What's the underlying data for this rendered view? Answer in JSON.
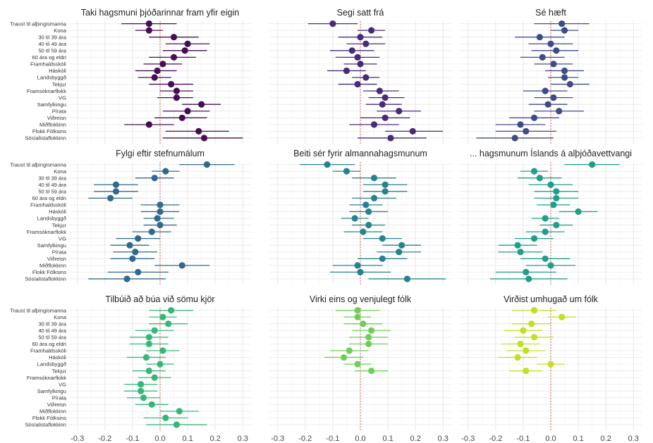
{
  "chart_data": {
    "type": "scatter",
    "subtype": "dot-and-whisker small multiples",
    "xlim": [
      -0.33,
      0.33
    ],
    "xticks": [
      -0.3,
      -0.2,
      -0.1,
      0.0,
      0.1,
      0.2,
      0.3
    ],
    "xtick_labels": [
      "-0.3",
      "-0.2",
      "-0.1",
      "0.0",
      "0.1",
      "0.2",
      "0.3"
    ],
    "reference_line": 0,
    "grid": true,
    "row_labels": [
      "Traust til alþingismanna",
      "Kona",
      "30 til 39 ára",
      "40 til 49 ára",
      "50 til 59 ára",
      "60 ára og eldri",
      "Framhaldsskóli",
      "Háskóli",
      "Landsbyggð",
      "Tekjur",
      "Framsóknarflokk",
      "VG",
      "Samfylkingu",
      "Pírata",
      "Viðreisn",
      "Miðflokkinn",
      "Flokk Fólksins",
      "Sósíalistaflokkinn"
    ],
    "panels": [
      {
        "title": "Taki hagsmuni þjóðarinnar fram yfir eigin",
        "color": "#450d54",
        "values": [
          -0.04,
          -0.04,
          0.05,
          0.1,
          0.09,
          0.05,
          0.01,
          -0.01,
          -0.02,
          0.04,
          0.06,
          0.06,
          0.15,
          0.1,
          0.08,
          -0.04,
          0.14,
          0.16
        ],
        "ci_low": [
          -0.14,
          -0.09,
          -0.04,
          0.02,
          0.01,
          -0.04,
          -0.06,
          -0.09,
          -0.08,
          -0.04,
          0.0,
          -0.01,
          0.08,
          0.01,
          -0.02,
          -0.13,
          0.02,
          0.01
        ],
        "ci_high": [
          0.06,
          0.01,
          0.14,
          0.18,
          0.17,
          0.13,
          0.08,
          0.06,
          0.04,
          0.12,
          0.12,
          0.12,
          0.22,
          0.18,
          0.17,
          0.05,
          0.25,
          0.3
        ]
      },
      {
        "title": "Segi satt frá",
        "color": "#472b7a",
        "values": [
          -0.1,
          0.04,
          0.0,
          0.02,
          -0.03,
          -0.01,
          0.0,
          -0.05,
          0.02,
          -0.01,
          0.07,
          0.09,
          0.08,
          0.14,
          0.09,
          0.05,
          0.19,
          0.11
        ],
        "ci_low": [
          -0.19,
          -0.01,
          -0.08,
          -0.05,
          -0.11,
          -0.09,
          -0.06,
          -0.12,
          -0.03,
          -0.08,
          0.01,
          0.03,
          0.02,
          0.06,
          0.0,
          -0.04,
          0.09,
          -0.01
        ],
        "ci_high": [
          -0.01,
          0.09,
          0.08,
          0.09,
          0.05,
          0.07,
          0.06,
          0.02,
          0.07,
          0.06,
          0.14,
          0.16,
          0.15,
          0.22,
          0.18,
          0.14,
          0.3,
          0.24
        ]
      },
      {
        "title": "Sé hæft",
        "color": "#3e4b89",
        "values": [
          0.04,
          0.05,
          -0.04,
          0.0,
          0.02,
          -0.03,
          0.01,
          0.05,
          0.05,
          0.07,
          -0.02,
          0.01,
          -0.01,
          0.03,
          -0.06,
          -0.11,
          -0.09,
          -0.13
        ],
        "ci_low": [
          -0.06,
          0.0,
          -0.13,
          -0.08,
          -0.07,
          -0.11,
          -0.06,
          -0.02,
          -0.01,
          0.0,
          -0.1,
          -0.06,
          -0.08,
          -0.06,
          -0.15,
          -0.2,
          -0.2,
          -0.27
        ],
        "ci_high": [
          0.14,
          0.1,
          0.05,
          0.08,
          0.1,
          0.05,
          0.08,
          0.12,
          0.1,
          0.14,
          0.06,
          0.08,
          0.06,
          0.12,
          0.03,
          -0.02,
          0.02,
          0.01
        ]
      },
      {
        "title": "Fylgi eftir stefnumálum",
        "color": "#30688e",
        "values": [
          0.17,
          0.02,
          -0.02,
          -0.16,
          -0.16,
          -0.18,
          0.0,
          0.0,
          -0.01,
          0.0,
          -0.03,
          -0.08,
          -0.11,
          -0.09,
          -0.1,
          0.08,
          -0.08,
          -0.12
        ],
        "ci_low": [
          0.07,
          -0.03,
          -0.09,
          -0.24,
          -0.24,
          -0.26,
          -0.07,
          -0.07,
          -0.06,
          -0.06,
          -0.1,
          -0.16,
          -0.18,
          -0.17,
          -0.18,
          -0.02,
          -0.19,
          -0.26
        ],
        "ci_high": [
          0.27,
          0.07,
          0.05,
          -0.08,
          -0.08,
          -0.1,
          0.07,
          0.07,
          0.05,
          0.06,
          0.04,
          0.0,
          -0.04,
          -0.01,
          -0.02,
          0.18,
          0.03,
          0.02
        ]
      },
      {
        "title": "Beiti sér fyrir almannahagsmunum",
        "color": "#26828e",
        "values": [
          -0.12,
          -0.05,
          0.05,
          0.09,
          0.09,
          0.05,
          0.02,
          0.03,
          -0.02,
          0.03,
          0.01,
          0.08,
          0.15,
          0.14,
          0.08,
          -0.01,
          0.0,
          0.17
        ],
        "ci_low": [
          -0.22,
          -0.1,
          -0.03,
          0.01,
          0.01,
          -0.03,
          -0.04,
          -0.04,
          -0.07,
          -0.03,
          -0.06,
          0.01,
          0.08,
          0.06,
          -0.01,
          -0.1,
          -0.11,
          0.03
        ],
        "ci_high": [
          -0.02,
          0.0,
          0.13,
          0.17,
          0.17,
          0.13,
          0.08,
          0.1,
          0.03,
          0.09,
          0.08,
          0.15,
          0.22,
          0.22,
          0.17,
          0.08,
          0.11,
          0.31
        ]
      },
      {
        "title": "... hagsmunum Íslands á alþjóðavettvangi",
        "color": "#1f9e89",
        "values": [
          0.15,
          -0.06,
          -0.04,
          0.0,
          0.02,
          0.02,
          0.01,
          0.1,
          -0.02,
          0.02,
          -0.02,
          -0.06,
          -0.12,
          -0.11,
          -0.02,
          0.0,
          -0.09,
          -0.08
        ],
        "ci_low": [
          0.05,
          -0.11,
          -0.12,
          -0.08,
          -0.06,
          -0.06,
          -0.05,
          0.03,
          -0.07,
          -0.04,
          -0.09,
          -0.13,
          -0.19,
          -0.19,
          -0.11,
          -0.09,
          -0.2,
          -0.22
        ],
        "ci_high": [
          0.25,
          -0.01,
          0.04,
          0.08,
          0.1,
          0.1,
          0.07,
          0.17,
          0.03,
          0.08,
          0.05,
          0.01,
          -0.05,
          -0.03,
          0.07,
          0.09,
          0.02,
          0.06
        ]
      },
      {
        "title": "Tilbúið að búa við sömu kjör",
        "color": "#35b779",
        "values": [
          0.04,
          0.01,
          0.03,
          -0.02,
          -0.04,
          -0.04,
          0.01,
          -0.05,
          0.0,
          -0.04,
          -0.02,
          -0.07,
          -0.07,
          -0.06,
          -0.03,
          0.07,
          0.02,
          0.06
        ],
        "ci_low": [
          -0.04,
          -0.04,
          -0.04,
          -0.09,
          -0.11,
          -0.11,
          -0.05,
          -0.12,
          -0.05,
          -0.1,
          -0.08,
          -0.13,
          -0.13,
          -0.12,
          -0.09,
          0.0,
          -0.06,
          -0.05
        ],
        "ci_high": [
          0.12,
          0.06,
          0.1,
          0.05,
          0.03,
          0.03,
          0.07,
          0.02,
          0.05,
          0.02,
          0.04,
          -0.01,
          -0.01,
          0.0,
          0.03,
          0.14,
          0.1,
          0.17
        ]
      },
      {
        "title": "Virki eins og venjulegt fólk",
        "color": "#6ece58",
        "values": [
          -0.01,
          -0.01,
          0.01,
          0.04,
          0.03,
          0.03,
          -0.04,
          -0.06,
          -0.01,
          0.04
        ],
        "ci_low": [
          -0.09,
          -0.06,
          -0.06,
          -0.03,
          -0.04,
          -0.04,
          -0.11,
          -0.13,
          -0.06,
          -0.02
        ],
        "ci_high": [
          0.07,
          0.04,
          0.08,
          0.11,
          0.1,
          0.1,
          0.03,
          0.01,
          0.04,
          0.1
        ]
      },
      {
        "title": "Virðist umhugað um fólk",
        "color": "#c2df23",
        "values": [
          -0.06,
          0.04,
          -0.07,
          -0.1,
          -0.06,
          -0.11,
          -0.09,
          -0.12,
          0.0,
          -0.09
        ],
        "ci_low": [
          -0.14,
          -0.01,
          -0.14,
          -0.17,
          -0.13,
          -0.18,
          -0.16,
          -0.19,
          -0.05,
          -0.15
        ],
        "ci_high": [
          0.02,
          0.09,
          0.0,
          -0.03,
          0.01,
          -0.04,
          -0.02,
          -0.05,
          0.05,
          -0.03
        ]
      }
    ]
  }
}
